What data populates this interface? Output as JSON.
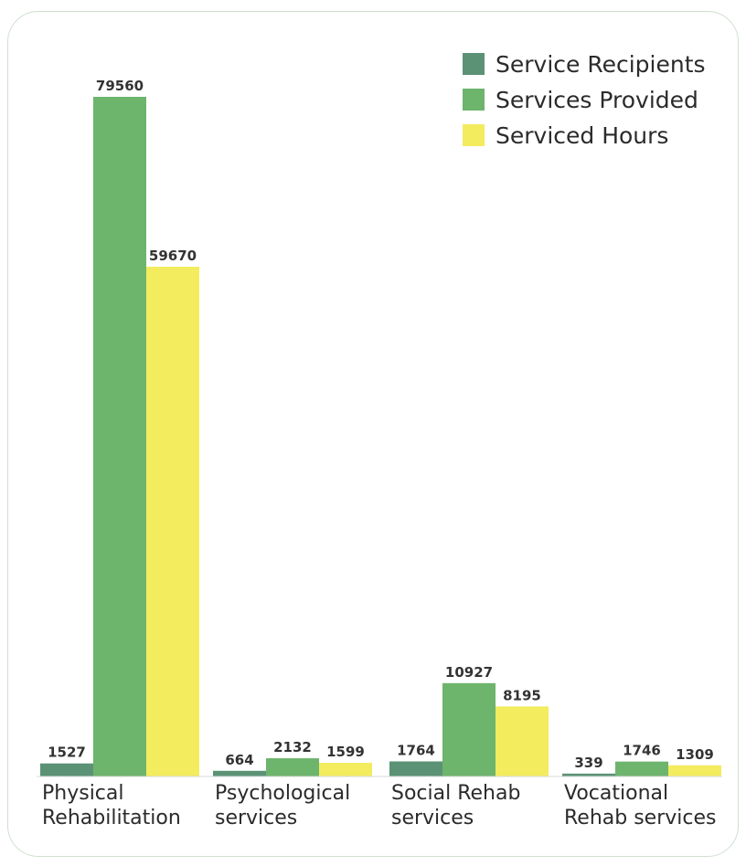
{
  "chart_data": {
    "type": "bar",
    "categories": [
      [
        "Physical",
        "Rehabilitation"
      ],
      [
        "Psychological",
        "services"
      ],
      [
        "Social Rehab",
        "services"
      ],
      [
        "Vocational",
        "Rehab services"
      ]
    ],
    "series": [
      {
        "name": "Service Recipients",
        "color": "#5b9276",
        "values": [
          1527,
          664,
          1764,
          339
        ]
      },
      {
        "name": "Services Provided",
        "color": "#6db46c",
        "values": [
          79560,
          2132,
          10927,
          1746
        ]
      },
      {
        "name": "Serviced Hours",
        "color": "#f2ec5e",
        "values": [
          59670,
          1599,
          8195,
          1309
        ]
      }
    ],
    "ylim": [
      0,
      79560
    ],
    "legend_position": "top-right",
    "grid": false,
    "value_labels": true
  }
}
